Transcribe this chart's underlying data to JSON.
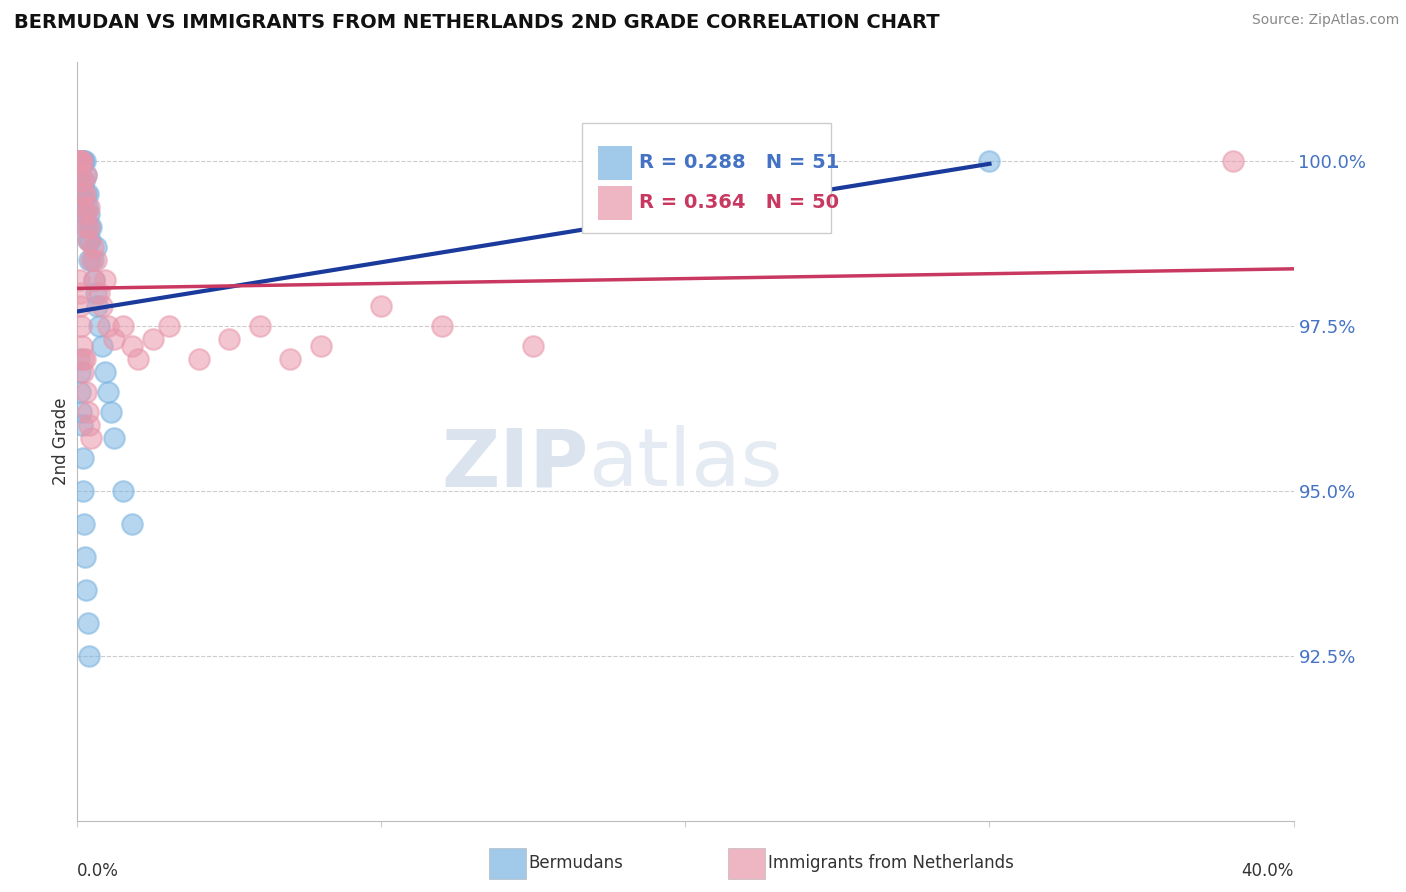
{
  "title": "BERMUDAN VS IMMIGRANTS FROM NETHERLANDS 2ND GRADE CORRELATION CHART",
  "source": "Source: ZipAtlas.com",
  "ylabel": "2nd Grade",
  "y_ticks": [
    92.5,
    95.0,
    97.5,
    100.0
  ],
  "y_tick_labels": [
    "92.5%",
    "95.0%",
    "97.5%",
    "100.0%"
  ],
  "xlim": [
    0.0,
    40.0
  ],
  "ylim": [
    90.0,
    101.5
  ],
  "blue_R": 0.288,
  "blue_N": 51,
  "pink_R": 0.364,
  "pink_N": 50,
  "blue_color": "#7ab3e0",
  "pink_color": "#e896aa",
  "blue_line_color": "#1a3a9c",
  "pink_line_color": "#c83860",
  "legend_label_blue": "Bermudans",
  "legend_label_pink": "Immigrants from Netherlands",
  "watermark_zip": "ZIP",
  "watermark_atlas": "atlas",
  "blue_x": [
    0.05,
    0.08,
    0.1,
    0.1,
    0.12,
    0.15,
    0.15,
    0.18,
    0.2,
    0.2,
    0.22,
    0.25,
    0.25,
    0.28,
    0.3,
    0.3,
    0.32,
    0.35,
    0.35,
    0.38,
    0.4,
    0.4,
    0.42,
    0.45,
    0.5,
    0.55,
    0.6,
    0.6,
    0.65,
    0.7,
    0.8,
    0.9,
    1.0,
    1.1,
    1.2,
    1.5,
    1.8,
    0.05,
    0.08,
    0.1,
    0.12,
    0.15,
    0.18,
    0.2,
    0.22,
    0.25,
    0.3,
    0.35,
    0.4,
    17.0,
    30.0
  ],
  "blue_y": [
    100.0,
    100.0,
    100.0,
    99.8,
    100.0,
    100.0,
    99.5,
    100.0,
    100.0,
    99.3,
    99.7,
    100.0,
    99.2,
    99.5,
    99.8,
    99.0,
    99.3,
    99.5,
    98.8,
    99.0,
    99.2,
    98.5,
    98.8,
    99.0,
    98.5,
    98.2,
    98.0,
    98.7,
    97.8,
    97.5,
    97.2,
    96.8,
    96.5,
    96.2,
    95.8,
    95.0,
    94.5,
    97.0,
    96.8,
    96.5,
    96.2,
    96.0,
    95.5,
    95.0,
    94.5,
    94.0,
    93.5,
    93.0,
    92.5,
    99.8,
    100.0
  ],
  "pink_x": [
    0.05,
    0.08,
    0.1,
    0.12,
    0.15,
    0.18,
    0.2,
    0.22,
    0.25,
    0.28,
    0.3,
    0.32,
    0.35,
    0.38,
    0.4,
    0.45,
    0.5,
    0.55,
    0.6,
    0.7,
    0.8,
    0.9,
    1.0,
    1.2,
    1.5,
    1.8,
    2.0,
    2.5,
    3.0,
    4.0,
    5.0,
    6.0,
    7.0,
    8.0,
    10.0,
    12.0,
    15.0,
    0.05,
    0.08,
    0.1,
    0.12,
    0.15,
    0.18,
    0.2,
    0.25,
    0.3,
    0.35,
    0.4,
    0.45,
    38.0
  ],
  "pink_y": [
    100.0,
    100.0,
    100.0,
    99.8,
    100.0,
    99.5,
    99.7,
    99.3,
    99.5,
    99.8,
    99.0,
    99.2,
    98.8,
    99.0,
    99.3,
    98.5,
    98.7,
    98.2,
    98.5,
    98.0,
    97.8,
    98.2,
    97.5,
    97.3,
    97.5,
    97.2,
    97.0,
    97.3,
    97.5,
    97.0,
    97.3,
    97.5,
    97.0,
    97.2,
    97.8,
    97.5,
    97.2,
    98.2,
    98.0,
    97.8,
    97.5,
    97.2,
    97.0,
    96.8,
    97.0,
    96.5,
    96.2,
    96.0,
    95.8,
    100.0
  ]
}
